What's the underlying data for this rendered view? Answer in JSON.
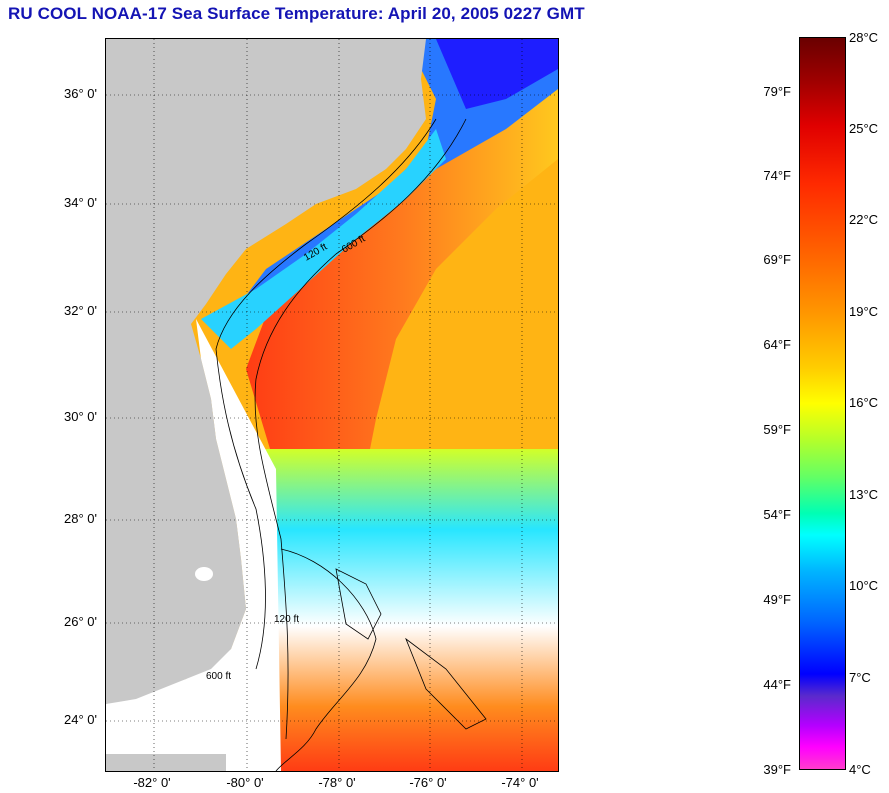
{
  "title": "RU COOL  NOAA-17  Sea Surface Temperature:  April 20, 2005 0227 GMT",
  "map": {
    "latitude_labels": [
      "36° 0'",
      "34° 0'",
      "32° 0'",
      "30° 0'",
      "28° 0'",
      "26° 0'",
      "24° 0'"
    ],
    "longitude_labels": [
      "-82° 0'",
      "-80° 0'",
      "-78° 0'",
      "-76° 0'",
      "-74° 0'"
    ],
    "contour_labels": [
      "120 ft",
      "600 ft"
    ],
    "colors": {
      "land": "#c8c8c8",
      "no_data": "#ffffff",
      "gulf_stream": "#ff5a14",
      "offshore": "#ffb414"
    }
  },
  "colorbar": {
    "fahrenheit_labels": [
      "79°F",
      "74°F",
      "69°F",
      "64°F",
      "59°F",
      "54°F",
      "49°F",
      "44°F",
      "39°F"
    ],
    "celsius_labels": [
      "28°C",
      "25°C",
      "22°C",
      "19°C",
      "16°C",
      "13°C",
      "10°C",
      "7°C",
      "4°C"
    ]
  }
}
